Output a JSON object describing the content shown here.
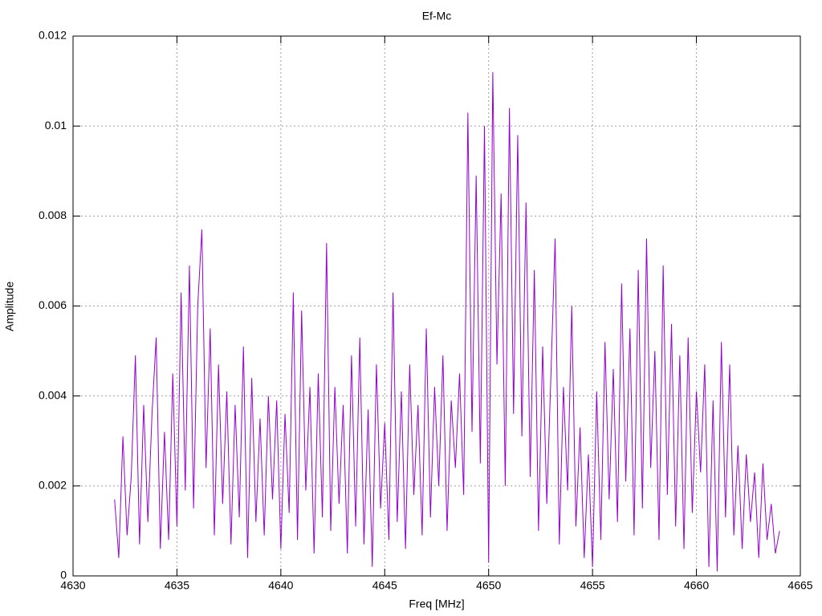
{
  "chart_data": {
    "type": "line",
    "title": "Ef-Mc",
    "x_label": "Freq [MHz]",
    "y_label": "Amplitude",
    "xlim": [
      4630,
      4665
    ],
    "xticks": [
      4630,
      4635,
      4640,
      4645,
      4650,
      4655,
      4660,
      4665
    ],
    "ylim": [
      0,
      0.012
    ],
    "yticks": [
      0,
      0.002,
      0.004,
      0.006,
      0.008,
      0.01,
      0.012
    ],
    "grid": true,
    "x": [
      4632,
      4632.2,
      4632.4,
      4632.6,
      4632.8,
      4633,
      4633.2,
      4633.4,
      4633.6,
      4633.8,
      4634,
      4634.2,
      4634.4,
      4634.6,
      4634.8,
      4635,
      4635.2,
      4635.4,
      4635.6,
      4635.8,
      4636,
      4636.2,
      4636.4,
      4636.6,
      4636.8,
      4637,
      4637.2,
      4637.4,
      4637.6,
      4637.8,
      4638,
      4638.2,
      4638.4,
      4638.6,
      4638.8,
      4639,
      4639.2,
      4639.4,
      4639.6,
      4639.8,
      4640,
      4640.2,
      4640.4,
      4640.6,
      4640.8,
      4641,
      4641.2,
      4641.4,
      4641.6,
      4641.8,
      4642,
      4642.2,
      4642.4,
      4642.6,
      4642.8,
      4643,
      4643.2,
      4643.4,
      4643.6,
      4643.8,
      4644,
      4644.2,
      4644.4,
      4644.6,
      4644.8,
      4645,
      4645.2,
      4645.4,
      4645.6,
      4645.8,
      4646,
      4646.2,
      4646.4,
      4646.6,
      4646.8,
      4647,
      4647.2,
      4647.4,
      4647.6,
      4647.8,
      4648,
      4648.2,
      4648.4,
      4648.6,
      4648.8,
      4649,
      4649.2,
      4649.4,
      4649.6,
      4649.8,
      4650,
      4650.2,
      4650.4,
      4650.6,
      4650.8,
      4651,
      4651.2,
      4651.4,
      4651.6,
      4651.8,
      4652,
      4652.2,
      4652.4,
      4652.6,
      4652.8,
      4653,
      4653.2,
      4653.4,
      4653.6,
      4653.8,
      4654,
      4654.2,
      4654.4,
      4654.6,
      4654.8,
      4655,
      4655.2,
      4655.4,
      4655.6,
      4655.8,
      4656,
      4656.2,
      4656.4,
      4656.6,
      4656.8,
      4657,
      4657.2,
      4657.4,
      4657.6,
      4657.8,
      4658,
      4658.2,
      4658.4,
      4658.6,
      4658.8,
      4659,
      4659.2,
      4659.4,
      4659.6,
      4659.8,
      4660,
      4660.2,
      4660.4,
      4660.6,
      4660.8,
      4661,
      4661.2,
      4661.4,
      4661.6,
      4661.8,
      4662,
      4662.2,
      4662.4,
      4662.6,
      4662.8,
      4663,
      4663.2,
      4663.4,
      4663.6,
      4663.8,
      4664
    ],
    "series": [
      {
        "color": "#9400d3",
        "values": [
          0.0017,
          0.0004,
          0.0031,
          0.0009,
          0.0022,
          0.0049,
          0.0007,
          0.0038,
          0.0012,
          0.0036,
          0.0053,
          0.0006,
          0.0032,
          0.0008,
          0.0045,
          0.0011,
          0.0063,
          0.0019,
          0.0069,
          0.0015,
          0.006,
          0.0077,
          0.0024,
          0.0055,
          0.0009,
          0.0047,
          0.0016,
          0.0041,
          0.0007,
          0.0038,
          0.0013,
          0.0051,
          0.0004,
          0.0044,
          0.0012,
          0.0035,
          0.0009,
          0.004,
          0.0017,
          0.0039,
          0.0006,
          0.0036,
          0.0014,
          0.0063,
          0.0008,
          0.0059,
          0.0019,
          0.0042,
          0.0005,
          0.0045,
          0.0013,
          0.0074,
          0.001,
          0.0042,
          0.0016,
          0.0038,
          0.0005,
          0.0049,
          0.0011,
          0.0053,
          0.0007,
          0.0037,
          0.0002,
          0.0047,
          0.0015,
          0.0034,
          0.0008,
          0.0063,
          0.0012,
          0.0041,
          0.0006,
          0.0047,
          0.0018,
          0.0038,
          0.0009,
          0.0055,
          0.0013,
          0.0042,
          0.002,
          0.0049,
          0.001,
          0.0039,
          0.0024,
          0.0045,
          0.0018,
          0.0103,
          0.0032,
          0.0089,
          0.0025,
          0.01,
          0.0003,
          0.0112,
          0.0047,
          0.0085,
          0.002,
          0.0104,
          0.0036,
          0.0098,
          0.0031,
          0.0083,
          0.0022,
          0.0068,
          0.001,
          0.0051,
          0.0016,
          0.0045,
          0.0075,
          0.0007,
          0.0042,
          0.0019,
          0.006,
          0.0011,
          0.0033,
          0.0004,
          0.0027,
          0.0002,
          0.0041,
          0.0008,
          0.0052,
          0.0017,
          0.0046,
          0.0012,
          0.0065,
          0.0021,
          0.0055,
          0.0009,
          0.0068,
          0.0015,
          0.0075,
          0.0024,
          0.005,
          0.0008,
          0.0069,
          0.0018,
          0.0056,
          0.0011,
          0.0049,
          0.0006,
          0.0053,
          0.0014,
          0.0041,
          0.0023,
          0.0047,
          0.0002,
          0.0039,
          0.0001,
          0.0052,
          0.0013,
          0.0047,
          0.0009,
          0.0029,
          0.0006,
          0.0027,
          0.0012,
          0.0023,
          0.0004,
          0.0025,
          0.0008,
          0.0016,
          0.0005,
          0.001
        ]
      }
    ]
  }
}
